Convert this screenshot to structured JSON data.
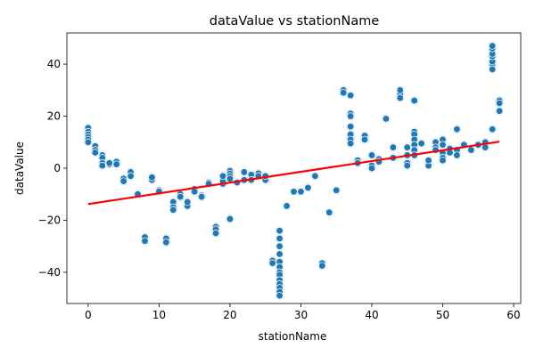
{
  "chart_data": {
    "type": "scatter",
    "title": "dataValue vs stationName",
    "xlabel": "stationName",
    "ylabel": "dataValue",
    "xlim": [
      -3,
      61
    ],
    "ylim": [
      -52,
      52
    ],
    "xticks": [
      0,
      10,
      20,
      30,
      40,
      50,
      60
    ],
    "yticks": [
      -40,
      -20,
      0,
      20,
      40
    ],
    "grid": false,
    "legend": "none",
    "colors": {
      "points": "#1f77b4",
      "point_edge": "#ffffff",
      "halo": "#c6dbef",
      "regression": "#ff0000"
    },
    "regression": {
      "x": [
        0,
        58
      ],
      "y": [
        -13.8,
        10.2
      ]
    },
    "series": [
      {
        "x": [
          0,
          0,
          0,
          0,
          0,
          0,
          1,
          1,
          1,
          2,
          2,
          2,
          2,
          3,
          3,
          4,
          4,
          5,
          5,
          6,
          6,
          7,
          8,
          8,
          9,
          9,
          10,
          10,
          11,
          11,
          12,
          12,
          12,
          13,
          13,
          14,
          14,
          15,
          15,
          16,
          16,
          17,
          17,
          18,
          18,
          18,
          19,
          19,
          19,
          20,
          20,
          20,
          20,
          20,
          21,
          22,
          22,
          23,
          23,
          24,
          24,
          25,
          25,
          26,
          26,
          27,
          27,
          27,
          27,
          27,
          27,
          27,
          27,
          27,
          27,
          27,
          27,
          27,
          28,
          29,
          30,
          31,
          32,
          33,
          33,
          34,
          35,
          36,
          36,
          37,
          37,
          37,
          37,
          37,
          37,
          37,
          38,
          38,
          39,
          39,
          40,
          40,
          40,
          41,
          41,
          42,
          43,
          43,
          44,
          44,
          44,
          45,
          45,
          45,
          45,
          46,
          46,
          46,
          46,
          46,
          46,
          46,
          47,
          48,
          48,
          48,
          49,
          49,
          49,
          50,
          50,
          50,
          50,
          50,
          51,
          51,
          52,
          52,
          52,
          53,
          54,
          55,
          56,
          56,
          57,
          57,
          57,
          57,
          57,
          57,
          57,
          57,
          58,
          58,
          58
        ],
        "y": [
          15.5,
          14,
          13,
          12,
          11,
          10,
          8.5,
          7,
          6,
          5,
          4,
          2,
          1,
          1.5,
          2,
          2.5,
          1.5,
          -4,
          -5,
          -1.5,
          -3,
          -10,
          -26.5,
          -28,
          -4.5,
          -3.5,
          -8.5,
          -9,
          -27,
          -28.5,
          -13,
          -15,
          -16,
          -10,
          -11,
          -14.5,
          -13,
          -8,
          -9,
          -10.5,
          -11,
          -5.5,
          -6,
          -22.5,
          -23.5,
          -25,
          -6,
          -5,
          -3,
          -1,
          -2,
          -3,
          -4,
          -19.5,
          -5.5,
          -4.5,
          -1.5,
          -2.5,
          -4.5,
          -2,
          -3,
          -4.5,
          -3,
          -35.5,
          -36.5,
          -24,
          -27,
          -30,
          -33,
          -36,
          -38,
          -40,
          -41,
          -43,
          -44.5,
          -46,
          -47.5,
          -49,
          -14.5,
          -9,
          -9,
          -7.5,
          -3,
          -36.5,
          -37.5,
          -17,
          -8.5,
          30,
          29,
          28,
          21,
          20,
          16,
          13,
          11,
          9.5,
          3,
          2,
          12.5,
          11,
          5,
          1,
          0,
          3.5,
          2.5,
          19,
          8,
          4,
          28.5,
          30,
          27,
          8,
          5,
          2,
          1,
          26,
          14,
          13,
          11,
          9,
          7,
          5,
          9.5,
          2,
          1,
          3,
          10,
          8,
          7,
          11,
          9,
          6,
          4,
          3,
          7.5,
          6,
          15,
          7,
          5,
          9,
          7,
          9,
          10,
          8,
          15,
          40,
          38,
          41,
          43,
          44,
          46,
          47,
          26,
          25,
          22
        ]
      }
    ]
  }
}
